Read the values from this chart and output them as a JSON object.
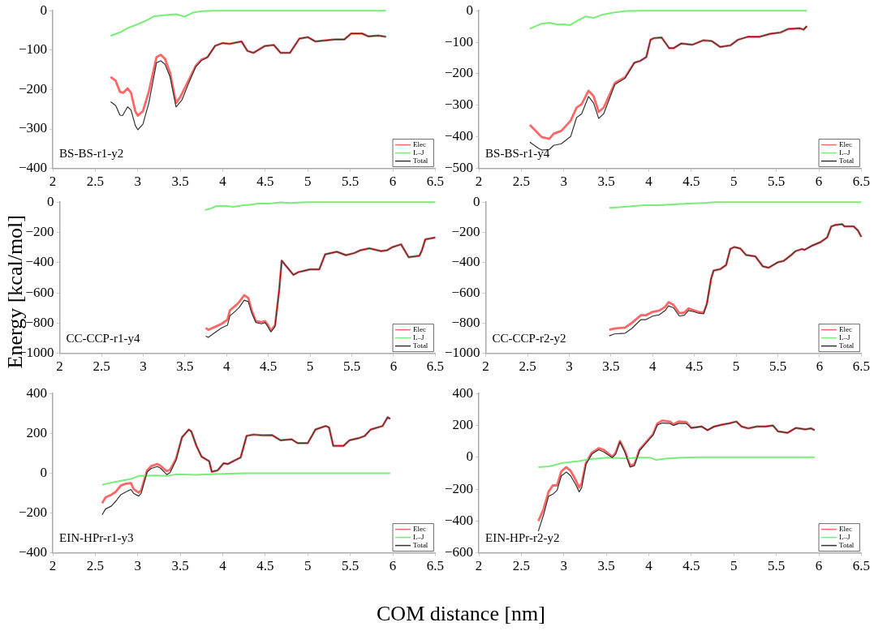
{
  "chart_data": [
    {
      "type": "line",
      "annotations": [
        "BS-BS-r1-y2"
      ],
      "legend": "bottom right",
      "grid": false,
      "marker": "none",
      "xlim": [
        2,
        6.5
      ],
      "xticks": [
        2,
        2.5,
        3,
        3.5,
        4,
        4.5,
        5,
        5.5,
        6,
        6.5
      ],
      "ylim": [
        -400,
        0
      ],
      "yticks": [
        -400,
        -300,
        -200,
        -100,
        0
      ],
      "series": [
        {
          "name": "Elec",
          "color": "#ff6666",
          "x": [
            2.68,
            2.74,
            2.79,
            2.83,
            2.88,
            2.92,
            2.97,
            3.0,
            3.06,
            3.13,
            3.22,
            3.27,
            3.32,
            3.38,
            3.45,
            3.5,
            3.6,
            3.68,
            3.75,
            3.82,
            3.91,
            4.0,
            4.08,
            4.22,
            4.29,
            4.36,
            4.49,
            4.6,
            4.68,
            4.79,
            4.9,
            5.0,
            5.09,
            5.18,
            5.32,
            5.43,
            5.51,
            5.64,
            5.71,
            5.83,
            5.92
          ],
          "values": [
            -168,
            -178,
            -206,
            -208,
            -197,
            -208,
            -255,
            -266,
            -255,
            -205,
            -118,
            -112,
            -122,
            -158,
            -234,
            -219,
            -176,
            -140,
            -124,
            -118,
            -89,
            -82,
            -84,
            -78,
            -102,
            -107,
            -90,
            -87,
            -107,
            -107,
            -71,
            -67,
            -78,
            -76,
            -73,
            -73,
            -58,
            -58,
            -65,
            -63,
            -66
          ]
        },
        {
          "name": "L–J",
          "color": "#77ee77",
          "x": [
            2.68,
            2.81,
            2.88,
            2.99,
            3.1,
            3.19,
            3.34,
            3.45,
            3.55,
            3.66,
            3.76,
            3.91,
            4.26,
            5.92
          ],
          "values": [
            -64,
            -53,
            -44,
            -35,
            -25,
            -14,
            -11,
            -9,
            -15,
            -4,
            -1,
            0,
            0,
            0
          ]
        },
        {
          "name": "Total",
          "color": "#333333",
          "x": [
            2.68,
            2.74,
            2.79,
            2.82,
            2.88,
            2.92,
            2.97,
            3.0,
            3.06,
            3.13,
            3.22,
            3.27,
            3.32,
            3.38,
            3.45,
            3.52,
            3.6,
            3.68,
            3.75,
            3.82,
            3.91,
            4.0,
            4.08,
            4.22,
            4.29,
            4.36,
            4.49,
            4.6,
            4.68,
            4.79,
            4.9,
            5.0,
            5.09,
            5.18,
            5.32,
            5.43,
            5.51,
            5.64,
            5.71,
            5.83,
            5.92
          ],
          "values": [
            -231,
            -241,
            -265,
            -266,
            -244,
            -252,
            -291,
            -302,
            -288,
            -234,
            -132,
            -127,
            -136,
            -168,
            -244,
            -226,
            -183,
            -143,
            -126,
            -118,
            -89,
            -82,
            -84,
            -78,
            -102,
            -107,
            -90,
            -87,
            -107,
            -107,
            -71,
            -67,
            -78,
            -76,
            -73,
            -73,
            -58,
            -58,
            -65,
            -63,
            -66
          ]
        }
      ]
    },
    {
      "type": "line",
      "annotations": [
        "BS-BS-r1-y4"
      ],
      "legend": "bottom right",
      "grid": false,
      "marker": "none",
      "xlim": [
        2,
        6.5
      ],
      "xticks": [
        2,
        2.5,
        3,
        3.5,
        4,
        4.5,
        5,
        5.5,
        6,
        6.5
      ],
      "ylim": [
        -500,
        0
      ],
      "yticks": [
        -500,
        -400,
        -300,
        -200,
        -100,
        0
      ],
      "series": [
        {
          "name": "Elec",
          "color": "#ff6666",
          "x": [
            2.6,
            2.7,
            2.74,
            2.83,
            2.88,
            2.97,
            3.08,
            3.15,
            3.21,
            3.29,
            3.35,
            3.41,
            3.47,
            3.6,
            3.72,
            3.83,
            3.9,
            3.97,
            4.02,
            4.06,
            4.15,
            4.24,
            4.29,
            4.38,
            4.51,
            4.64,
            4.74,
            4.84,
            4.96,
            5.05,
            5.16,
            5.3,
            5.43,
            5.55,
            5.64,
            5.78,
            5.82,
            5.86
          ],
          "values": [
            -362,
            -390,
            -401,
            -406,
            -390,
            -381,
            -349,
            -307,
            -296,
            -254,
            -271,
            -321,
            -307,
            -229,
            -211,
            -165,
            -159,
            -147,
            -92,
            -87,
            -85,
            -119,
            -119,
            -104,
            -108,
            -94,
            -96,
            -115,
            -110,
            -92,
            -83,
            -83,
            -73,
            -69,
            -58,
            -56,
            -60,
            -49
          ]
        },
        {
          "name": "L–J",
          "color": "#77ee77",
          "x": [
            2.6,
            2.74,
            2.83,
            2.92,
            3.0,
            3.07,
            3.17,
            3.26,
            3.35,
            3.46,
            3.6,
            3.74,
            3.96,
            5.86
          ],
          "values": [
            -57,
            -41,
            -38,
            -44,
            -43,
            -46,
            -30,
            -18,
            -23,
            -12,
            -5,
            -1,
            0,
            0
          ]
        },
        {
          "name": "Total",
          "color": "#333333",
          "x": [
            2.6,
            2.7,
            2.74,
            2.83,
            2.88,
            2.97,
            3.08,
            3.15,
            3.21,
            3.29,
            3.35,
            3.41,
            3.47,
            3.6,
            3.72,
            3.83,
            3.9,
            3.97,
            4.02,
            4.06,
            4.15,
            4.24,
            4.29,
            4.38,
            4.51,
            4.64,
            4.74,
            4.84,
            4.96,
            5.05,
            5.16,
            5.3,
            5.43,
            5.55,
            5.64,
            5.78,
            5.82,
            5.86
          ],
          "values": [
            -417,
            -436,
            -442,
            -440,
            -427,
            -422,
            -399,
            -339,
            -327,
            -272,
            -293,
            -342,
            -326,
            -234,
            -214,
            -165,
            -159,
            -147,
            -92,
            -87,
            -85,
            -119,
            -119,
            -104,
            -108,
            -94,
            -96,
            -115,
            -110,
            -92,
            -83,
            -83,
            -73,
            -69,
            -58,
            -56,
            -60,
            -49
          ]
        }
      ]
    },
    {
      "type": "line",
      "ylabel": "Energy [kcal/mol]",
      "annotations": [
        "CC-CCP-r1-y4"
      ],
      "legend": "bottom right",
      "grid": false,
      "marker": "none",
      "xlim": [
        2,
        6.5
      ],
      "xticks": [
        2,
        2.5,
        3,
        3.5,
        4,
        4.5,
        5,
        5.5,
        6,
        6.5
      ],
      "ylim": [
        -1000,
        0
      ],
      "yticks": [
        -1000,
        -800,
        -600,
        -400,
        -200,
        0
      ],
      "series": [
        {
          "name": "Elec",
          "color": "#ff6666",
          "x": [
            3.75,
            3.78,
            3.87,
            3.94,
            4.01,
            4.04,
            4.1,
            4.15,
            4.21,
            4.26,
            4.3,
            4.35,
            4.42,
            4.46,
            4.49,
            4.53,
            4.58,
            4.63,
            4.66,
            4.72,
            4.8,
            4.86,
            4.93,
            5.0,
            5.11,
            5.18,
            5.32,
            5.43,
            5.53,
            5.6,
            5.71,
            5.85,
            5.92,
            5.99,
            6.09,
            6.18,
            6.31,
            6.34,
            6.38,
            6.5
          ],
          "values": [
            -832,
            -845,
            -823,
            -805,
            -778,
            -715,
            -688,
            -661,
            -616,
            -634,
            -715,
            -787,
            -793,
            -787,
            -809,
            -850,
            -814,
            -580,
            -387,
            -427,
            -481,
            -463,
            -454,
            -445,
            -445,
            -346,
            -328,
            -351,
            -337,
            -319,
            -306,
            -324,
            -319,
            -297,
            -279,
            -364,
            -355,
            -319,
            -247,
            -234
          ]
        },
        {
          "name": "L–J",
          "color": "#77ee77",
          "x": [
            3.74,
            3.8,
            3.87,
            3.98,
            4.08,
            4.19,
            4.3,
            4.38,
            4.52,
            4.65,
            4.75,
            4.97,
            6.5
          ],
          "values": [
            -52,
            -45,
            -27,
            -25,
            -31,
            -22,
            -16,
            -9,
            -9,
            -2,
            -5,
            0,
            0
          ]
        },
        {
          "name": "Total",
          "color": "#333333",
          "x": [
            3.75,
            3.78,
            3.87,
            3.94,
            4.01,
            4.04,
            4.1,
            4.15,
            4.21,
            4.26,
            4.3,
            4.35,
            4.42,
            4.46,
            4.49,
            4.53,
            4.58,
            4.63,
            4.66,
            4.72,
            4.8,
            4.86,
            4.93,
            5.0,
            5.11,
            5.18,
            5.32,
            5.43,
            5.53,
            5.6,
            5.71,
            5.85,
            5.92,
            5.99,
            6.09,
            6.18,
            6.31,
            6.34,
            6.38,
            6.5
          ],
          "values": [
            -886,
            -895,
            -859,
            -832,
            -814,
            -751,
            -724,
            -697,
            -649,
            -658,
            -733,
            -796,
            -805,
            -796,
            -820,
            -859,
            -823,
            -580,
            -387,
            -427,
            -481,
            -463,
            -454,
            -445,
            -445,
            -346,
            -328,
            -351,
            -337,
            -319,
            -306,
            -324,
            -319,
            -297,
            -279,
            -364,
            -355,
            -319,
            -247,
            -234
          ]
        }
      ]
    },
    {
      "type": "line",
      "annotations": [
        "CC-CCP-r2-y2"
      ],
      "legend": "bottom right",
      "grid": false,
      "marker": "none",
      "xlim": [
        2,
        6.5
      ],
      "xticks": [
        2,
        2.5,
        3,
        3.5,
        4,
        4.5,
        5,
        5.5,
        6,
        6.5
      ],
      "ylim": [
        -1000,
        0
      ],
      "yticks": [
        -1000,
        -800,
        -600,
        -400,
        -200,
        0
      ],
      "series": [
        {
          "name": "Elec",
          "color": "#ff6666",
          "x": [
            3.48,
            3.54,
            3.67,
            3.75,
            3.86,
            3.92,
            4.0,
            4.08,
            4.15,
            4.19,
            4.25,
            4.32,
            4.38,
            4.43,
            4.5,
            4.55,
            4.61,
            4.65,
            4.7,
            4.73,
            4.81,
            4.88,
            4.93,
            4.98,
            5.05,
            5.12,
            5.23,
            5.32,
            5.39,
            5.5,
            5.57,
            5.66,
            5.71,
            5.79,
            5.82,
            5.91,
            6.01,
            6.09,
            6.14,
            6.19,
            6.27,
            6.3,
            6.41,
            6.46,
            6.5
          ],
          "values": [
            -845,
            -836,
            -830,
            -799,
            -748,
            -748,
            -726,
            -717,
            -693,
            -662,
            -680,
            -735,
            -730,
            -703,
            -717,
            -726,
            -730,
            -672,
            -507,
            -453,
            -443,
            -416,
            -310,
            -297,
            -307,
            -350,
            -359,
            -425,
            -434,
            -398,
            -389,
            -350,
            -325,
            -310,
            -316,
            -288,
            -265,
            -234,
            -161,
            -151,
            -146,
            -161,
            -161,
            -188,
            -230
          ]
        },
        {
          "name": "L–J",
          "color": "#77ee77",
          "x": [
            3.48,
            3.72,
            3.9,
            4.08,
            4.25,
            4.43,
            4.61,
            4.75,
            6.5
          ],
          "values": [
            -38,
            -29,
            -20,
            -20,
            -15,
            -9,
            -5,
            0,
            0
          ]
        },
        {
          "name": "Total",
          "color": "#333333",
          "x": [
            3.48,
            3.54,
            3.67,
            3.75,
            3.86,
            3.92,
            4.0,
            4.08,
            4.15,
            4.19,
            4.25,
            4.32,
            4.38,
            4.43,
            4.5,
            4.55,
            4.61,
            4.65,
            4.7,
            4.73,
            4.81,
            4.88,
            4.93,
            4.98,
            5.05,
            5.12,
            5.23,
            5.32,
            5.39,
            5.5,
            5.57,
            5.66,
            5.71,
            5.79,
            5.82,
            5.91,
            6.01,
            6.09,
            6.14,
            6.19,
            6.27,
            6.3,
            6.41,
            6.46,
            6.5
          ],
          "values": [
            -885,
            -872,
            -867,
            -836,
            -777,
            -777,
            -754,
            -745,
            -717,
            -686,
            -699,
            -754,
            -748,
            -717,
            -726,
            -735,
            -739,
            -672,
            -507,
            -453,
            -443,
            -416,
            -310,
            -297,
            -307,
            -350,
            -359,
            -425,
            -434,
            -398,
            -389,
            -350,
            -325,
            -310,
            -316,
            -288,
            -265,
            -234,
            -161,
            -151,
            -146,
            -161,
            -161,
            -188,
            -230
          ]
        }
      ]
    },
    {
      "type": "line",
      "xlabel": "COM distance [nm]",
      "annotations": [
        "EIN-HPr-r1-y3"
      ],
      "legend": "bottom right",
      "grid": false,
      "marker": "none",
      "xlim": [
        2,
        6.5
      ],
      "xticks": [
        2,
        2.5,
        3,
        3.5,
        4,
        4.5,
        5,
        5.5,
        6,
        6.5
      ],
      "ylim": [
        -400,
        400
      ],
      "yticks": [
        -400,
        -200,
        0,
        200,
        400
      ],
      "series": [
        {
          "name": "Elec",
          "color": "#ff6666",
          "x": [
            2.58,
            2.62,
            2.69,
            2.74,
            2.8,
            2.86,
            2.92,
            2.95,
            3.01,
            3.04,
            3.11,
            3.16,
            3.23,
            3.27,
            3.34,
            3.38,
            3.45,
            3.52,
            3.6,
            3.63,
            3.69,
            3.75,
            3.84,
            3.87,
            3.94,
            4.01,
            4.06,
            4.12,
            4.21,
            4.28,
            4.36,
            4.47,
            4.58,
            4.68,
            4.81,
            4.88,
            5.0,
            5.09,
            5.21,
            5.25,
            5.3,
            5.42,
            5.49,
            5.6,
            5.67,
            5.74,
            5.88,
            5.94,
            5.97
          ],
          "values": [
            -151,
            -122,
            -108,
            -94,
            -62,
            -53,
            -50,
            -79,
            -98,
            -86,
            14,
            36,
            46,
            36,
            10,
            17,
            72,
            180,
            219,
            209,
            137,
            83,
            60,
            7,
            14,
            50,
            46,
            60,
            79,
            187,
            194,
            190,
            191,
            165,
            170,
            151,
            151,
            219,
            237,
            230,
            137,
            137,
            165,
            176,
            187,
            219,
            237,
            281,
            273
          ]
        },
        {
          "name": "L–J",
          "color": "#77ee77",
          "x": [
            2.58,
            2.74,
            2.92,
            3.01,
            3.2,
            3.34,
            3.45,
            3.69,
            3.91,
            4.26,
            5.97
          ],
          "values": [
            -58,
            -43,
            -29,
            -14,
            -12,
            -14,
            -6,
            -9,
            -4,
            0,
            0
          ]
        },
        {
          "name": "Total",
          "color": "#333333",
          "x": [
            2.58,
            2.62,
            2.69,
            2.74,
            2.8,
            2.86,
            2.92,
            2.95,
            3.01,
            3.04,
            3.11,
            3.16,
            3.23,
            3.27,
            3.34,
            3.38,
            3.45,
            3.52,
            3.6,
            3.63,
            3.69,
            3.75,
            3.84,
            3.87,
            3.94,
            4.01,
            4.06,
            4.12,
            4.21,
            4.28,
            4.36,
            4.47,
            4.58,
            4.68,
            4.81,
            4.88,
            5.0,
            5.09,
            5.21,
            5.25,
            5.3,
            5.42,
            5.49,
            5.6,
            5.67,
            5.74,
            5.88,
            5.94,
            5.97
          ],
          "values": [
            -209,
            -180,
            -165,
            -141,
            -108,
            -94,
            -82,
            -101,
            -115,
            -101,
            7,
            24,
            33,
            24,
            -7,
            3,
            65,
            180,
            219,
            209,
            137,
            83,
            60,
            7,
            14,
            50,
            46,
            60,
            79,
            187,
            194,
            190,
            191,
            165,
            170,
            151,
            151,
            219,
            237,
            230,
            137,
            137,
            165,
            176,
            187,
            219,
            237,
            281,
            273
          ]
        }
      ]
    },
    {
      "type": "line",
      "annotations": [
        "EIN-HPr-r2-y2"
      ],
      "legend": "bottom right",
      "grid": false,
      "marker": "none",
      "xlim": [
        2,
        6.5
      ],
      "xticks": [
        2,
        2.5,
        3,
        3.5,
        4,
        4.5,
        5,
        5.5,
        6,
        6.5
      ],
      "ylim": [
        -600,
        400
      ],
      "yticks": [
        -600,
        -400,
        -200,
        0,
        200,
        400
      ],
      "series": [
        {
          "name": "Elec",
          "color": "#ff6666",
          "x": [
            2.7,
            2.76,
            2.82,
            2.87,
            2.92,
            2.97,
            3.03,
            3.08,
            3.14,
            3.18,
            3.21,
            3.26,
            3.33,
            3.41,
            3.47,
            3.57,
            3.61,
            3.66,
            3.72,
            3.78,
            3.83,
            3.89,
            3.98,
            4.05,
            4.1,
            4.16,
            4.25,
            4.29,
            4.35,
            4.44,
            4.5,
            4.62,
            4.69,
            4.77,
            4.87,
            4.94,
            5.03,
            5.09,
            5.17,
            5.27,
            5.37,
            5.46,
            5.52,
            5.63,
            5.73,
            5.84,
            5.91,
            5.95
          ],
          "values": [
            -400,
            -327,
            -217,
            -177,
            -177,
            -89,
            -62,
            -86,
            -144,
            -190,
            -162,
            -35,
            29,
            57,
            47,
            2,
            29,
            102,
            38,
            -53,
            -44,
            47,
            102,
            146,
            212,
            230,
            224,
            206,
            224,
            221,
            184,
            193,
            170,
            193,
            206,
            212,
            224,
            193,
            181,
            193,
            193,
            199,
            162,
            153,
            184,
            175,
            181,
            170
          ]
        },
        {
          "name": "L–J",
          "color": "#77ee77",
          "x": [
            2.7,
            2.83,
            2.99,
            3.16,
            3.3,
            3.51,
            3.72,
            3.86,
            4.01,
            4.08,
            4.22,
            4.4,
            4.58,
            5.95
          ],
          "values": [
            -62,
            -57,
            -35,
            -26,
            -13,
            -2,
            -7,
            -2,
            -2,
            -16,
            -7,
            -2,
            0,
            0
          ]
        },
        {
          "name": "Total",
          "color": "#333333",
          "x": [
            2.7,
            2.76,
            2.82,
            2.87,
            2.92,
            2.97,
            3.03,
            3.08,
            3.14,
            3.18,
            3.21,
            3.26,
            3.33,
            3.41,
            3.47,
            3.57,
            3.61,
            3.66,
            3.72,
            3.78,
            3.83,
            3.89,
            3.98,
            4.05,
            4.1,
            4.16,
            4.25,
            4.29,
            4.35,
            4.44,
            4.5,
            4.62,
            4.69,
            4.77,
            4.87,
            4.94,
            5.03,
            5.09,
            5.17,
            5.27,
            5.37,
            5.46,
            5.52,
            5.63,
            5.73,
            5.84,
            5.91,
            5.95
          ],
          "values": [
            -464,
            -363,
            -245,
            -232,
            -208,
            -117,
            -93,
            -117,
            -172,
            -217,
            -190,
            -44,
            20,
            47,
            33,
            -2,
            20,
            97,
            29,
            -62,
            -53,
            42,
            97,
            139,
            203,
            215,
            212,
            199,
            212,
            212,
            184,
            193,
            170,
            193,
            206,
            212,
            224,
            193,
            181,
            193,
            193,
            199,
            162,
            153,
            184,
            175,
            181,
            170
          ]
        }
      ]
    }
  ]
}
